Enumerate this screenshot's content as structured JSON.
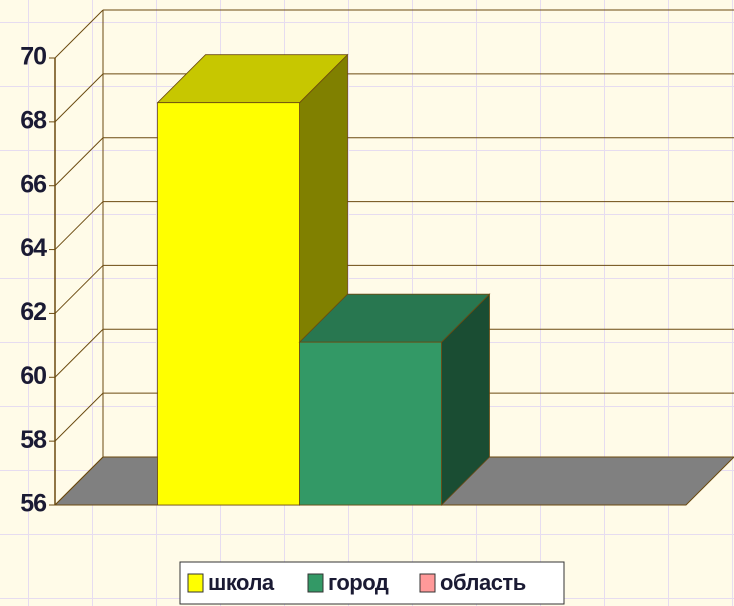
{
  "chart_data": {
    "type": "bar3d",
    "categories": [
      null
    ],
    "series": [
      {
        "name": "школа",
        "color": "#ffff00",
        "values": [
          68.6
        ]
      },
      {
        "name": "город",
        "color": "#339966",
        "values": [
          61.1
        ]
      },
      {
        "name": "область",
        "color": "#ff9999",
        "values": [
          null
        ]
      }
    ],
    "ylim": [
      56,
      70
    ],
    "yticks": [
      56,
      58,
      60,
      62,
      64,
      66,
      68,
      70
    ],
    "grid": true,
    "legend": "bottom"
  }
}
